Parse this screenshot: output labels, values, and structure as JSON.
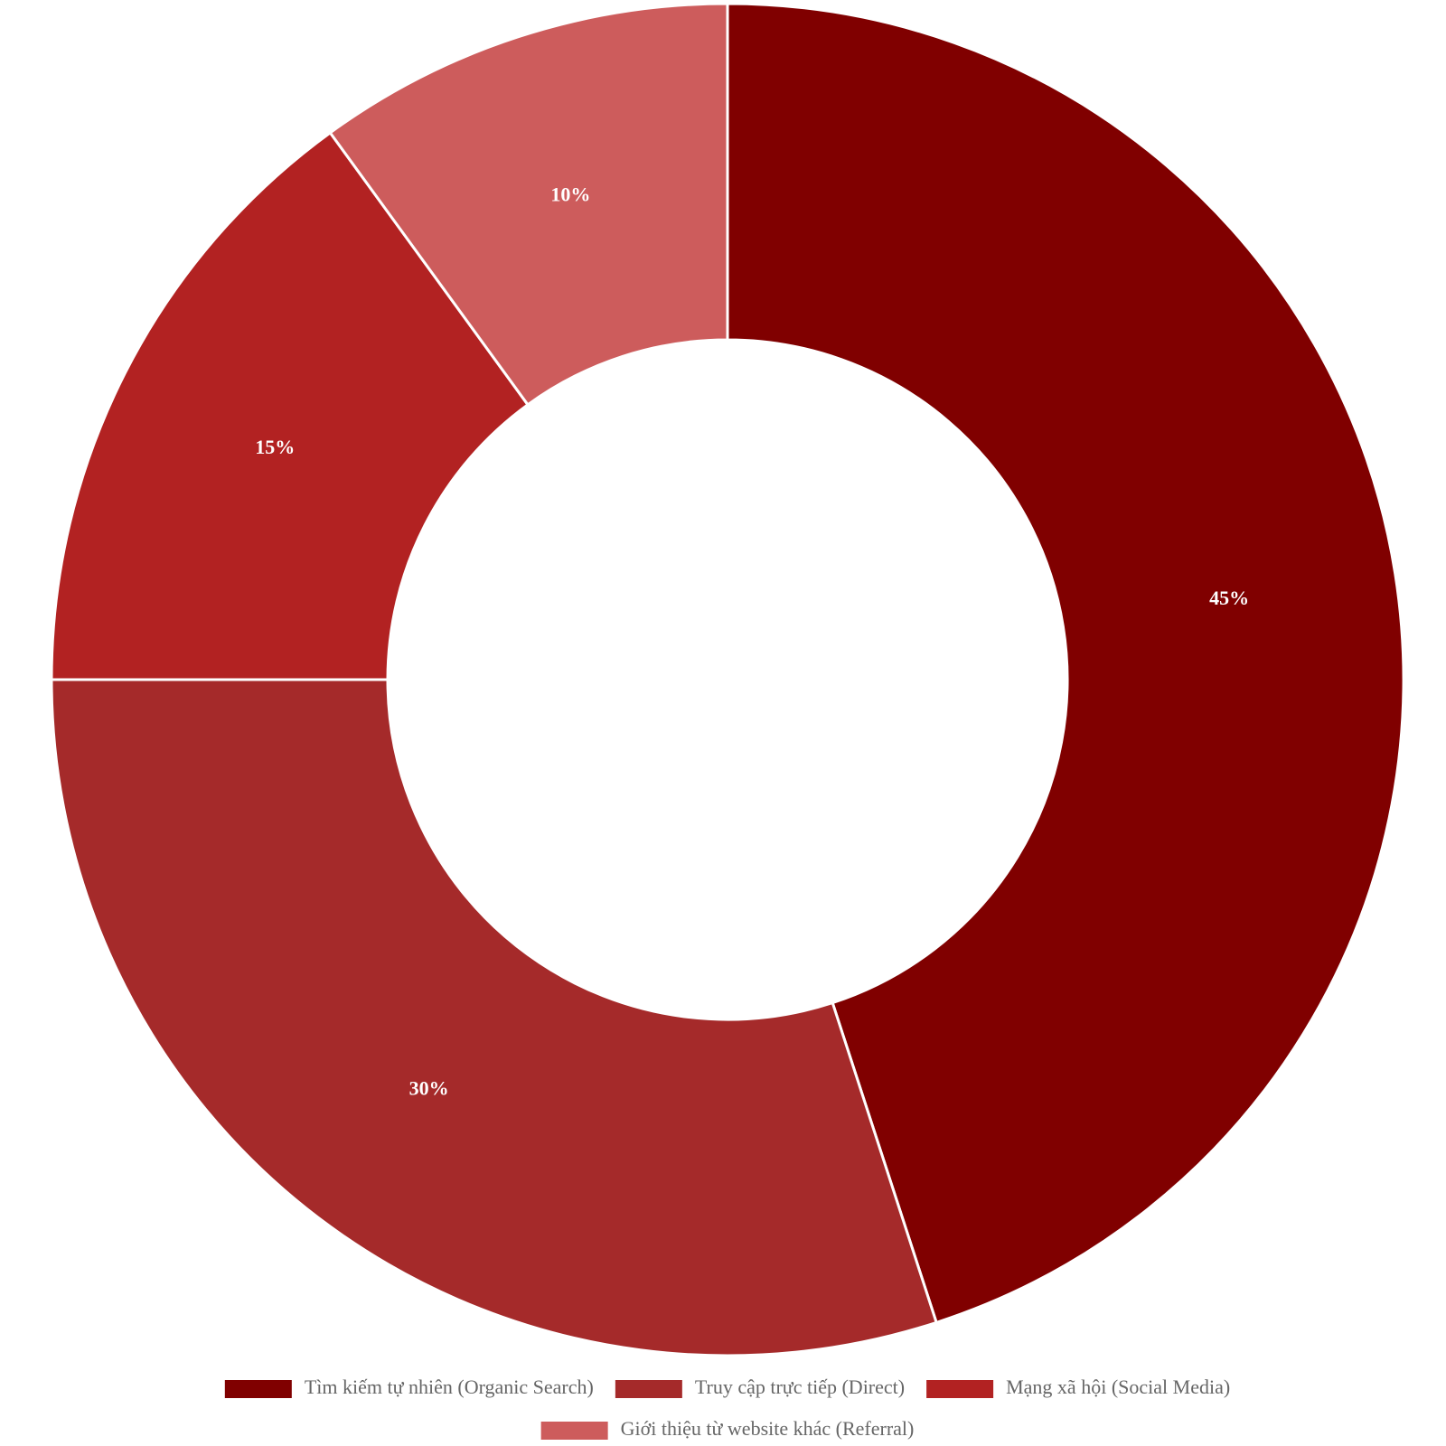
{
  "chart_data": {
    "type": "pie",
    "variant": "donut",
    "title": "",
    "categories": [
      "Tìm kiếm tự nhiên (Organic Search)",
      "Truy cập trực tiếp (Direct)",
      "Mạng xã hội (Social Media)",
      "Giới thiệu từ website khác (Referral)"
    ],
    "values": [
      45,
      30,
      15,
      10
    ],
    "value_labels": [
      "45%",
      "30%",
      "15%",
      "10%"
    ],
    "colors": [
      "#800000",
      "#A52A2A",
      "#B22222",
      "#CD5C5C"
    ],
    "legend_position": "bottom"
  }
}
